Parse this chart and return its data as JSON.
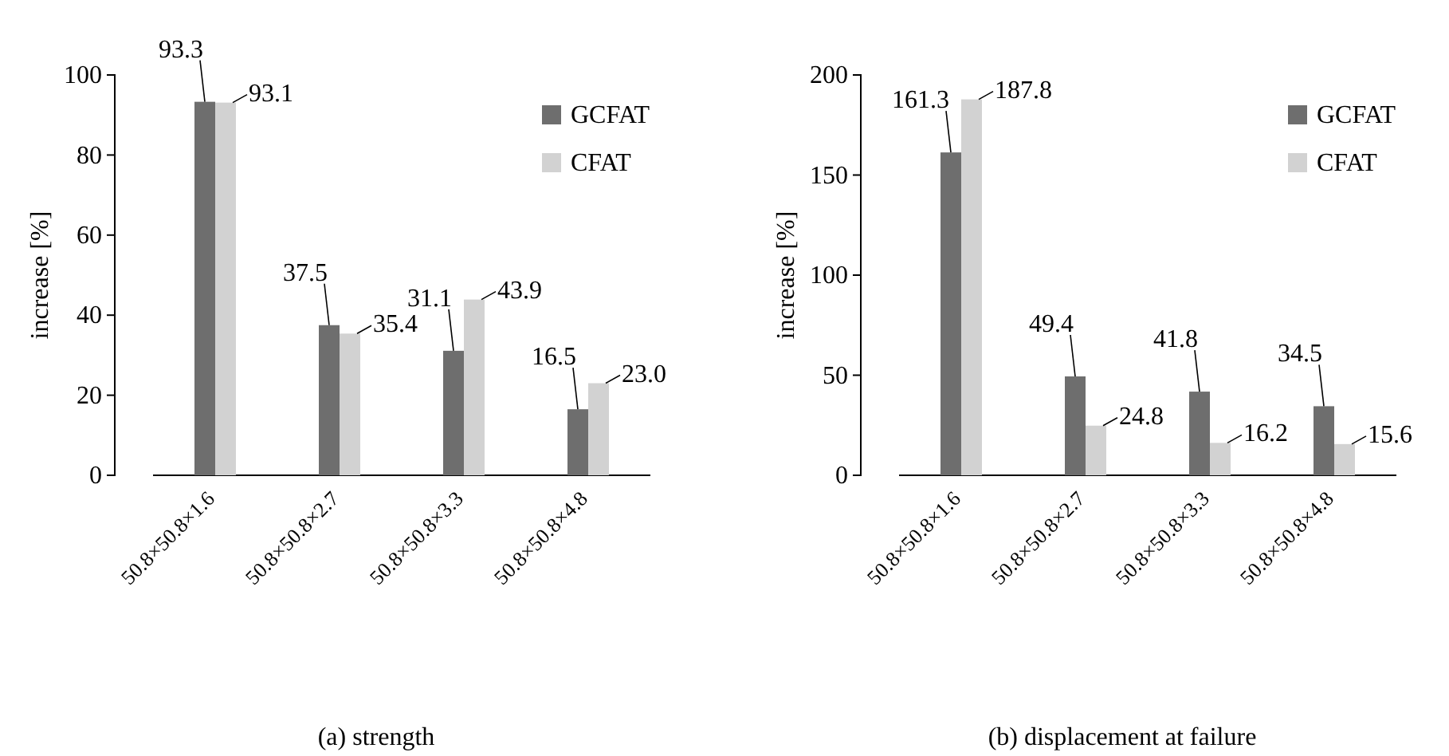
{
  "chart_data": [
    {
      "type": "bar",
      "title": "(a) strength",
      "ylabel": "increase [%]",
      "categories": [
        "50.8×50.8×1.6",
        "50.8×50.8×2.7",
        "50.8×50.8×3.3",
        "50.8×50.8×4.8"
      ],
      "series": [
        {
          "name": "GCFAT",
          "color": "#6e6e6e",
          "values": [
            93.3,
            37.5,
            31.1,
            16.5
          ],
          "value_labels": [
            "93.3",
            "37.5",
            "31.1",
            "16.5"
          ]
        },
        {
          "name": "CFAT",
          "color": "#d2d2d2",
          "values": [
            93.1,
            35.4,
            43.9,
            23.0
          ],
          "value_labels": [
            "93.1",
            "35.4",
            "43.9",
            "23.0"
          ]
        }
      ],
      "ylim": [
        0,
        100
      ],
      "yticks": [
        0,
        20,
        40,
        60,
        80,
        100
      ],
      "legend": "top right"
    },
    {
      "type": "bar",
      "title": "(b) displacement at failure",
      "ylabel": "increase [%]",
      "categories": [
        "50.8×50.8×1.6",
        "50.8×50.8×2.7",
        "50.8×50.8×3.3",
        "50.8×50.8×4.8"
      ],
      "series": [
        {
          "name": "GCFAT",
          "color": "#6e6e6e",
          "values": [
            161.3,
            49.4,
            41.8,
            34.5
          ],
          "value_labels": [
            "161.3",
            "49.4",
            "41.8",
            "34.5"
          ]
        },
        {
          "name": "CFAT",
          "color": "#d2d2d2",
          "values": [
            187.8,
            24.8,
            16.2,
            15.6
          ],
          "value_labels": [
            "187.8",
            "24.8",
            "16.2",
            "15.6"
          ]
        }
      ],
      "ylim": [
        0,
        200
      ],
      "yticks": [
        0,
        50,
        100,
        150,
        200
      ],
      "legend": "top right"
    }
  ]
}
